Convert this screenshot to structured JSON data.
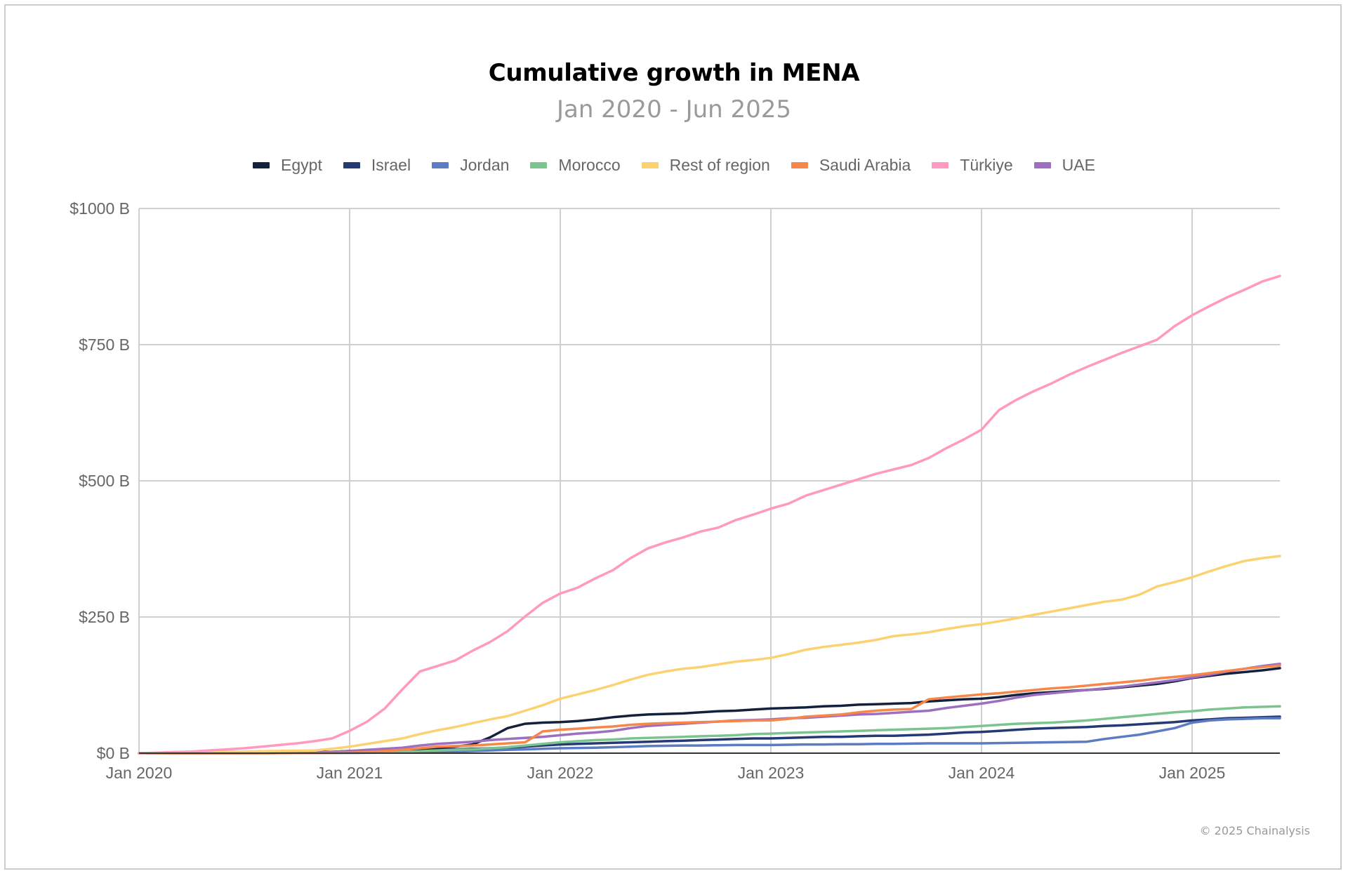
{
  "title": "Cumulative growth in MENA",
  "subtitle": "Jan 2020 - Jun 2025",
  "copyright": "© 2025 Chainalysis",
  "chart_data": {
    "type": "line",
    "title": "Cumulative growth in MENA",
    "subtitle": "Jan 2020 - Jun 2025",
    "xlabel": "",
    "ylabel": "",
    "ylim": [
      0,
      1000
    ],
    "y_ticks": [
      0,
      250,
      500,
      750,
      1000
    ],
    "y_tick_labels": [
      "$0 B",
      "$250 B",
      "$500 B",
      "$750 B",
      "$1000 B"
    ],
    "x_ticks": [
      "Jan 2020",
      "Jan 2021",
      "Jan 2022",
      "Jan 2023",
      "Jan 2024",
      "Jan 2025"
    ],
    "x_range": [
      "Jan 2020",
      "Jun 2025"
    ],
    "x_unit": "month",
    "grid": true,
    "legend_position": "top-center",
    "x": [
      "2020-01",
      "2020-02",
      "2020-03",
      "2020-04",
      "2020-05",
      "2020-06",
      "2020-07",
      "2020-08",
      "2020-09",
      "2020-10",
      "2020-11",
      "2020-12",
      "2021-01",
      "2021-02",
      "2021-03",
      "2021-04",
      "2021-05",
      "2021-06",
      "2021-07",
      "2021-08",
      "2021-09",
      "2021-10",
      "2021-11",
      "2021-12",
      "2022-01",
      "2022-02",
      "2022-03",
      "2022-04",
      "2022-05",
      "2022-06",
      "2022-07",
      "2022-08",
      "2022-09",
      "2022-10",
      "2022-11",
      "2022-12",
      "2023-01",
      "2023-02",
      "2023-03",
      "2023-04",
      "2023-05",
      "2023-06",
      "2023-07",
      "2023-08",
      "2023-09",
      "2023-10",
      "2023-11",
      "2023-12",
      "2024-01",
      "2024-02",
      "2024-03",
      "2024-04",
      "2024-05",
      "2024-06",
      "2024-07",
      "2024-08",
      "2024-09",
      "2024-10",
      "2024-11",
      "2024-12",
      "2025-01",
      "2025-02",
      "2025-03",
      "2025-04",
      "2025-05",
      "2025-06"
    ],
    "series": [
      {
        "name": "Egypt",
        "color": "#14213d",
        "values": [
          0,
          0,
          0.3,
          0.5,
          0.8,
          1,
          1.2,
          1.5,
          1.8,
          2,
          2.2,
          2.5,
          4,
          5,
          6,
          7,
          8,
          10,
          12,
          16,
          29,
          46,
          54,
          56,
          57,
          59,
          62,
          66,
          69,
          71,
          72,
          73,
          75,
          77,
          78,
          80,
          82,
          83,
          84,
          86,
          87,
          89,
          90,
          91,
          92,
          95,
          97,
          99,
          100,
          103,
          107,
          110,
          112,
          114,
          116,
          118,
          121,
          124,
          127,
          132,
          138,
          142,
          146,
          149,
          152,
          156
        ]
      },
      {
        "name": "Israel",
        "color": "#253a75",
        "values": [
          0,
          0,
          0,
          0,
          0.2,
          0.3,
          0.4,
          0.5,
          0.6,
          0.8,
          1,
          1.2,
          1.5,
          2,
          3,
          4,
          5,
          6,
          7,
          8,
          9,
          10,
          12,
          14,
          16,
          17,
          18,
          19,
          20,
          21,
          22,
          23,
          24,
          25,
          26,
          27,
          27,
          28,
          29,
          30,
          30,
          31,
          32,
          32,
          33,
          34,
          36,
          38,
          39,
          41,
          43,
          45,
          46,
          47,
          48,
          50,
          51,
          53,
          55,
          57,
          60,
          62,
          64,
          65,
          66,
          67
        ]
      },
      {
        "name": "Jordan",
        "color": "#5b7bc2",
        "values": [
          0,
          0,
          0,
          0,
          0,
          0,
          0,
          0.1,
          0.2,
          0.3,
          0.4,
          0.5,
          0.6,
          0.8,
          1,
          1.5,
          2,
          2.5,
          3,
          4,
          5,
          6,
          7,
          8,
          9,
          9.5,
          10,
          11,
          12,
          13,
          13.5,
          14,
          14,
          14.5,
          15,
          15,
          15,
          15.5,
          16,
          16,
          16.5,
          16.5,
          17,
          17,
          17.5,
          18,
          18,
          18,
          18,
          18.5,
          19,
          19.5,
          20,
          20.5,
          21,
          26,
          30,
          34,
          40,
          46,
          56,
          60,
          62,
          63,
          64,
          64
        ]
      },
      {
        "name": "Morocco",
        "color": "#7cc48f",
        "values": [
          0,
          0,
          0,
          0,
          0,
          0,
          0,
          0.1,
          0.2,
          0.3,
          0.5,
          0.7,
          1,
          1.5,
          2,
          3,
          4,
          5,
          6,
          7,
          9,
          11,
          14,
          17,
          20,
          22,
          24,
          25,
          27,
          28,
          29,
          30,
          31,
          32,
          33,
          35,
          36,
          37,
          38,
          39,
          40,
          41,
          42,
          43,
          44,
          45,
          46,
          48,
          50,
          52,
          54,
          55,
          56,
          58,
          60,
          63,
          66,
          69,
          72,
          75,
          77,
          80,
          82,
          84,
          85,
          86
        ]
      },
      {
        "name": "Rest of region",
        "color": "#fcd271",
        "values": [
          0,
          0.5,
          1,
          1.5,
          2,
          2.5,
          3,
          3.5,
          4,
          4.5,
          5,
          8,
          12,
          17,
          22,
          27,
          35,
          42,
          48,
          55,
          62,
          68,
          78,
          88,
          100,
          108,
          116,
          125,
          135,
          144,
          150,
          155,
          158,
          163,
          168,
          171,
          175,
          182,
          190,
          195,
          199,
          203,
          208,
          215,
          218,
          222,
          228,
          233,
          237,
          242,
          248,
          254,
          260,
          266,
          272,
          278,
          282,
          291,
          306,
          314,
          323,
          334,
          344,
          353,
          358,
          362
        ]
      },
      {
        "name": "Saudi Arabia",
        "color": "#f7864a",
        "values": [
          0,
          0,
          0,
          0,
          0,
          0,
          0,
          0,
          0.1,
          0.2,
          0.3,
          0.5,
          1,
          2,
          4,
          6,
          9,
          12,
          13,
          14,
          16,
          18,
          20,
          40,
          43,
          45,
          47,
          49,
          52,
          54,
          55,
          56,
          57,
          58,
          59,
          60,
          60,
          63,
          67,
          69,
          71,
          75,
          78,
          80,
          81,
          99,
          102,
          105,
          108,
          110,
          113,
          116,
          119,
          121,
          124,
          127,
          130,
          133,
          137,
          140,
          143,
          147,
          151,
          155,
          158,
          161
        ]
      },
      {
        "name": "Türkiye",
        "color": "#ff99bf",
        "values": [
          0,
          1,
          2,
          3,
          5,
          7,
          9,
          12,
          15,
          18,
          22,
          27,
          41,
          58,
          82,
          117,
          150,
          160,
          170,
          188,
          204,
          224,
          251,
          276,
          293,
          304,
          321,
          336,
          358,
          376,
          387,
          396,
          407,
          414,
          428,
          438,
          449,
          458,
          473,
          483,
          493,
          503,
          513,
          521,
          529,
          542,
          560,
          576,
          594,
          630,
          649,
          665,
          679,
          695,
          709,
          722,
          735,
          747,
          759,
          784,
          804,
          821,
          837,
          851,
          866,
          876
        ]
      },
      {
        "name": "UAE",
        "color": "#9c6fc0",
        "values": [
          0,
          0,
          0,
          0,
          0,
          0,
          0.1,
          0.2,
          0.3,
          0.5,
          1,
          2,
          4,
          6,
          8,
          10,
          14,
          17,
          19,
          21,
          24,
          26,
          28,
          30,
          33,
          36,
          38,
          41,
          46,
          50,
          52,
          54,
          56,
          58,
          60,
          61,
          62,
          64,
          65,
          67,
          69,
          71,
          72,
          74,
          76,
          78,
          83,
          87,
          91,
          96,
          102,
          107,
          110,
          113,
          116,
          119,
          122,
          126,
          130,
          134,
          139,
          144,
          150,
          155,
          160,
          164
        ]
      }
    ]
  }
}
